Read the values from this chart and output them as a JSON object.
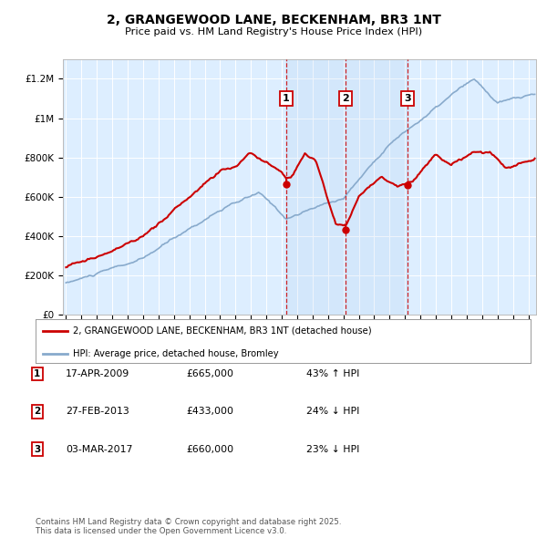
{
  "title": "2, GRANGEWOOD LANE, BECKENHAM, BR3 1NT",
  "subtitle": "Price paid vs. HM Land Registry's House Price Index (HPI)",
  "bg_color": "#ddeeff",
  "red_color": "#cc0000",
  "blue_color": "#88aacc",
  "sale_dates": [
    2009.29,
    2013.16,
    2017.17
  ],
  "sale_prices": [
    665000,
    433000,
    660000
  ],
  "sale_labels": [
    "1",
    "2",
    "3"
  ],
  "legend_red": "2, GRANGEWOOD LANE, BECKENHAM, BR3 1NT (detached house)",
  "legend_blue": "HPI: Average price, detached house, Bromley",
  "table_entries": [
    [
      "1",
      "17-APR-2009",
      "£665,000",
      "43% ↑ HPI"
    ],
    [
      "2",
      "27-FEB-2013",
      "£433,000",
      "24% ↓ HPI"
    ],
    [
      "3",
      "03-MAR-2017",
      "£660,000",
      "23% ↓ HPI"
    ]
  ],
  "footer": "Contains HM Land Registry data © Crown copyright and database right 2025.\nThis data is licensed under the Open Government Licence v3.0.",
  "ylim": [
    0,
    1300000
  ],
  "xlim": [
    1994.8,
    2025.5
  ],
  "yticks": [
    0,
    200000,
    400000,
    600000,
    800000,
    1000000,
    1200000
  ],
  "ytick_labels": [
    "£0",
    "£200K",
    "£400K",
    "£600K",
    "£800K",
    "£1M",
    "£1.2M"
  ],
  "xticks": [
    1995,
    1996,
    1997,
    1998,
    1999,
    2000,
    2001,
    2002,
    2003,
    2004,
    2005,
    2006,
    2007,
    2008,
    2009,
    2010,
    2011,
    2012,
    2013,
    2014,
    2015,
    2016,
    2017,
    2018,
    2019,
    2020,
    2021,
    2022,
    2023,
    2024,
    2025
  ]
}
